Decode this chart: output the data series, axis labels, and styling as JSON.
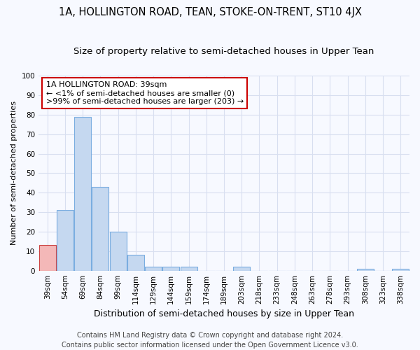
{
  "title": "1A, HOLLINGTON ROAD, TEAN, STOKE-ON-TRENT, ST10 4JX",
  "subtitle": "Size of property relative to semi-detached houses in Upper Tean",
  "xlabel": "Distribution of semi-detached houses by size in Upper Tean",
  "ylabel": "Number of semi-detached properties",
  "categories": [
    "39sqm",
    "54sqm",
    "69sqm",
    "84sqm",
    "99sqm",
    "114sqm",
    "129sqm",
    "144sqm",
    "159sqm",
    "174sqm",
    "189sqm",
    "203sqm",
    "218sqm",
    "233sqm",
    "248sqm",
    "263sqm",
    "278sqm",
    "293sqm",
    "308sqm",
    "323sqm",
    "338sqm"
  ],
  "values": [
    13,
    31,
    79,
    43,
    20,
    8,
    2,
    2,
    2,
    0,
    0,
    2,
    0,
    0,
    0,
    0,
    0,
    0,
    1,
    0,
    1
  ],
  "bar_color": "#c5d8f0",
  "bar_edge_color": "#7aade0",
  "highlight_index": 0,
  "highlight_color": "#f4b8b8",
  "highlight_edge_color": "#cc4444",
  "ylim": [
    0,
    100
  ],
  "yticks": [
    0,
    10,
    20,
    30,
    40,
    50,
    60,
    70,
    80,
    90,
    100
  ],
  "annotation_text": "1A HOLLINGTON ROAD: 39sqm\n← <1% of semi-detached houses are smaller (0)\n>99% of semi-detached houses are larger (203) →",
  "annotation_box_color": "#ffffff",
  "annotation_box_edge": "#cc0000",
  "footer_line1": "Contains HM Land Registry data © Crown copyright and database right 2024.",
  "footer_line2": "Contains public sector information licensed under the Open Government Licence v3.0.",
  "bg_color": "#f7f9ff",
  "plot_bg_color": "#f7f9ff",
  "grid_color": "#d8dff0",
  "title_fontsize": 10.5,
  "subtitle_fontsize": 9.5,
  "xlabel_fontsize": 9,
  "ylabel_fontsize": 8,
  "tick_fontsize": 7.5,
  "annotation_fontsize": 8,
  "footer_fontsize": 7
}
